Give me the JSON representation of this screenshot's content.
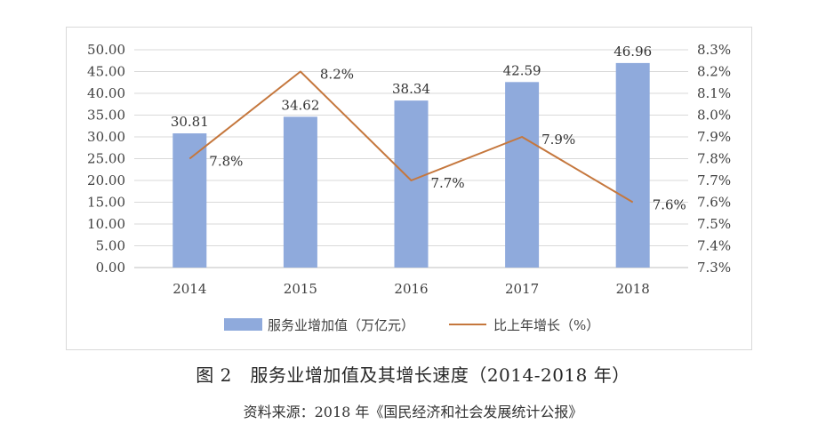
{
  "chart_data": {
    "type": "bar+line",
    "categories": [
      "2014",
      "2015",
      "2016",
      "2017",
      "2018"
    ],
    "series": [
      {
        "name": "服务业增加值（万亿元）",
        "chart_type": "bar",
        "axis": "left",
        "values": [
          30.81,
          34.62,
          38.34,
          42.59,
          46.96
        ],
        "labels": [
          "30.81",
          "34.62",
          "38.34",
          "42.59",
          "46.96"
        ],
        "color": "#8faadc"
      },
      {
        "name": "比上年增长（%）",
        "chart_type": "line",
        "axis": "right",
        "values": [
          7.8,
          8.2,
          7.7,
          7.9,
          7.6
        ],
        "labels": [
          "7.8%",
          "8.2%",
          "7.7%",
          "7.9%",
          "7.6%"
        ],
        "color": "#c5773d"
      }
    ],
    "y_left": {
      "ylim": [
        0,
        50
      ],
      "ticks": [
        "0.00",
        "5.00",
        "10.00",
        "15.00",
        "20.00",
        "25.00",
        "30.00",
        "35.00",
        "40.00",
        "45.00",
        "50.00"
      ]
    },
    "y_right": {
      "ylim": [
        7.3,
        8.3
      ],
      "ticks": [
        "7.3%",
        "7.4%",
        "7.5%",
        "7.6%",
        "7.7%",
        "7.8%",
        "7.9%",
        "8.0%",
        "8.1%",
        "8.2%",
        "8.3%"
      ]
    },
    "grid": true,
    "legend_position": "bottom"
  },
  "caption": "图 2　服务业增加值及其增长速度（2014-2018 年）",
  "source": "资料来源：2018 年《国民经济和社会发展统计公报》"
}
